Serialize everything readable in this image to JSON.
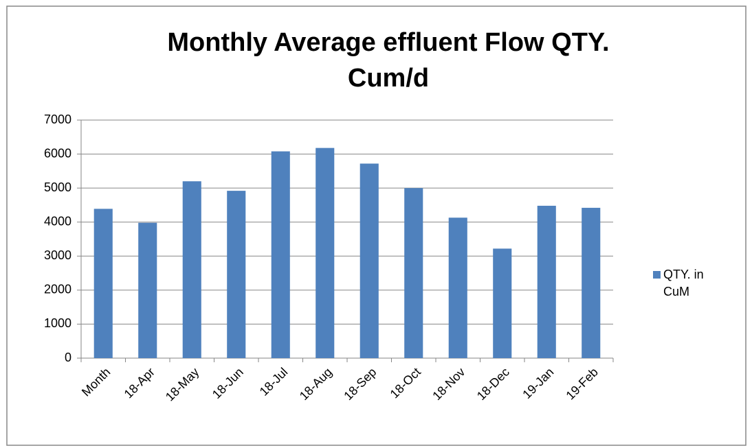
{
  "chart_data": {
    "type": "bar",
    "title": [
      "Monthly Average effluent Flow  QTY.",
      "Cum/d"
    ],
    "categories": [
      "Month",
      "18-Apr",
      "18-May",
      "18-Jun",
      "18-Jul",
      "18-Aug",
      "18-Sep",
      "18-Oct",
      "18-Nov",
      "18-Dec",
      "19-Jan",
      "19-Feb"
    ],
    "series": [
      {
        "name": "QTY. in CuM",
        "color": "#4f81bd",
        "values": [
          4390,
          3980,
          5200,
          4920,
          6080,
          6180,
          5720,
          5000,
          4130,
          3220,
          4480,
          4420
        ]
      }
    ],
    "ylim": [
      0,
      7000
    ],
    "yticks": [
      0,
      1000,
      2000,
      3000,
      4000,
      5000,
      6000,
      7000
    ],
    "grid": true,
    "legend": "right"
  }
}
